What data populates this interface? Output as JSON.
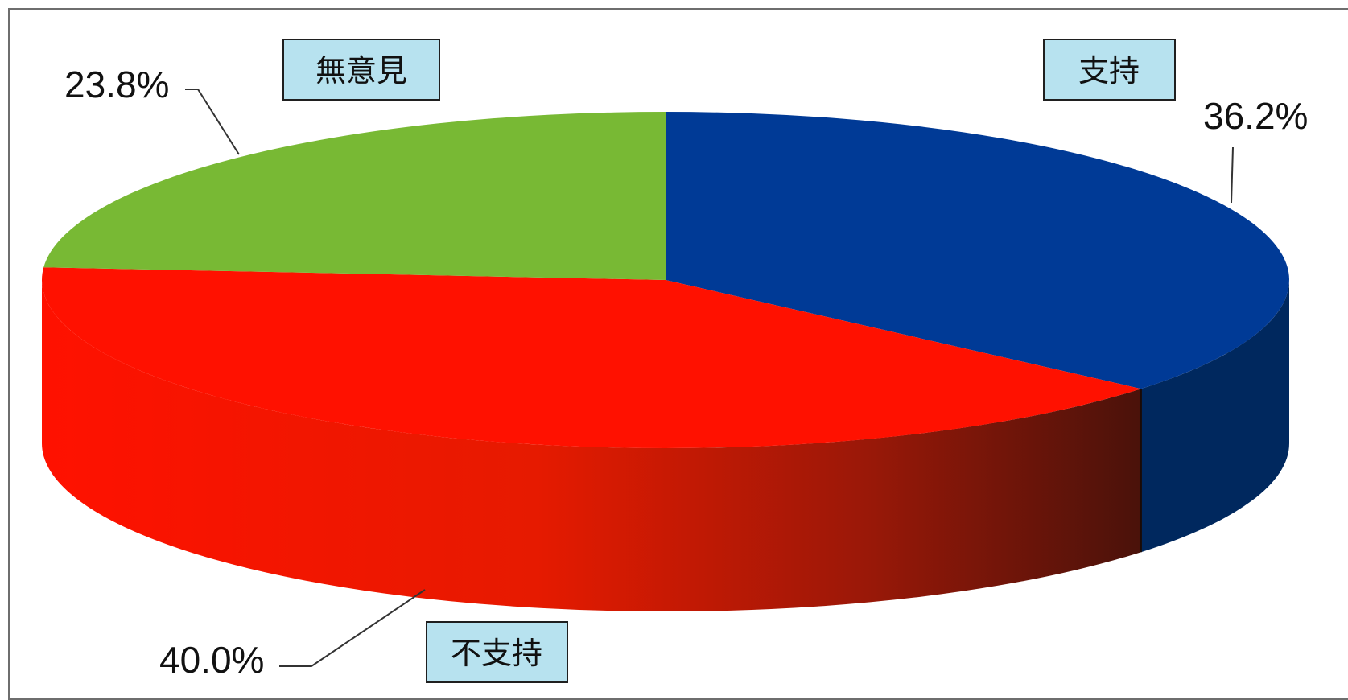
{
  "chart_data": {
    "type": "pie",
    "variant": "3d",
    "title": "",
    "legend": "none",
    "slices": [
      {
        "name": "支持",
        "value": 36.2,
        "label": "36.2%",
        "color": "#003a96",
        "side_color": "#00285e"
      },
      {
        "name": "不支持",
        "value": 40.0,
        "label": "40.0%",
        "color": "#ff1100",
        "side_color": "#e51400"
      },
      {
        "name": "無意見",
        "value": 23.8,
        "label": "23.8%",
        "color": "#78b934",
        "side_color": "#5a8c27"
      }
    ]
  }
}
